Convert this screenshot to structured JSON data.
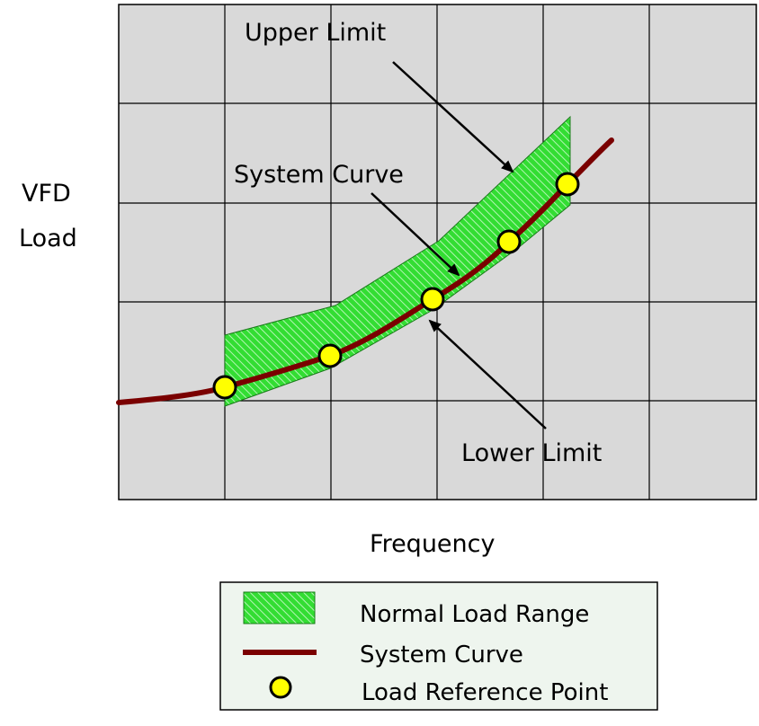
{
  "axis": {
    "y_label_line1": "VFD",
    "y_label_line2": "Load",
    "x_label": "Frequency"
  },
  "annotations": {
    "upper_limit": "Upper Limit",
    "system_curve": "System Curve",
    "lower_limit": "Lower Limit"
  },
  "legend": {
    "items": [
      {
        "label": "Normal Load Range",
        "symbol": "hatched-band"
      },
      {
        "label": "System Curve",
        "symbol": "line"
      },
      {
        "label": "Load Reference Point",
        "symbol": "circle"
      }
    ]
  },
  "reference_points_count": 5,
  "colors": {
    "grid_background": "#d9d9d9",
    "grid_lines": "#000000",
    "band_fill": "#33dd33",
    "band_hatch": "#a8f0a8",
    "system_curve": "#7a0000",
    "reference_point_fill": "#ffff00",
    "legend_background": "#eef5ee"
  }
}
